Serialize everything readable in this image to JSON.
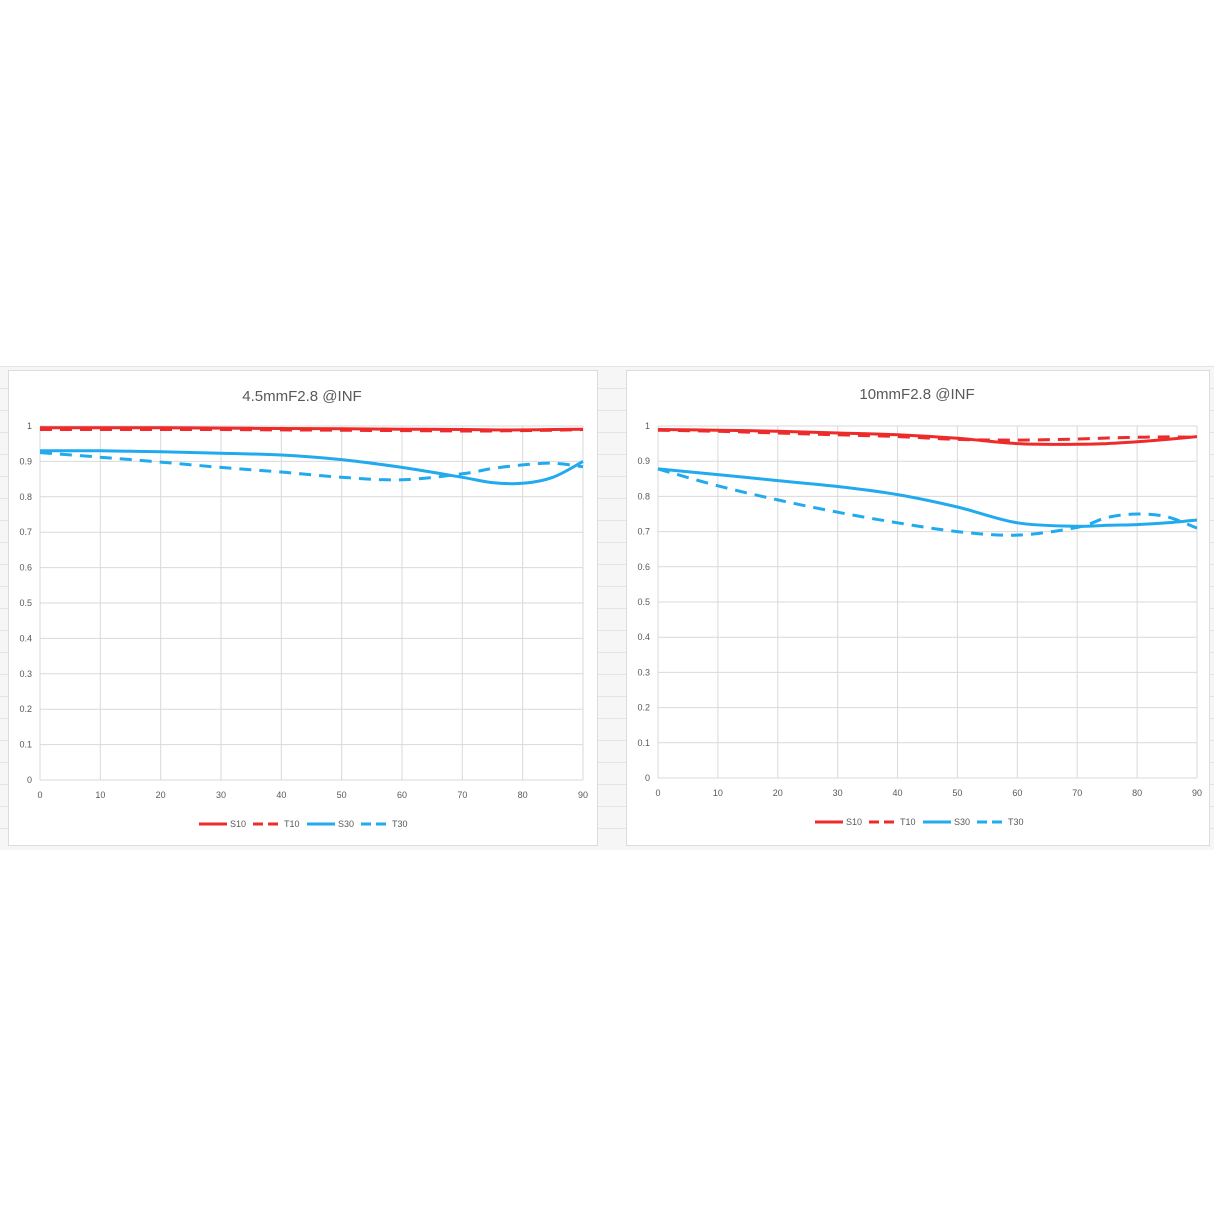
{
  "colors": {
    "s10": "#ee2b2b",
    "t10": "#ee2b2b",
    "s30": "#22aaee",
    "t30": "#22aaee",
    "grid": "#d9d9d9"
  },
  "chart_data": [
    {
      "type": "line",
      "title": "4.5mmF2.8 @INF",
      "xlabel": "",
      "ylabel": "",
      "xlim": [
        0,
        90
      ],
      "ylim": [
        0,
        1
      ],
      "xticks": [
        "0",
        "10",
        "20",
        "30",
        "40",
        "50",
        "60",
        "70",
        "80",
        "90"
      ],
      "yticks": [
        "0",
        "0.1",
        "0.2",
        "0.3",
        "0.4",
        "0.5",
        "0.6",
        "0.7",
        "0.8",
        "0.9",
        "1"
      ],
      "grid": true,
      "legend": "bottom",
      "x": [
        0,
        10,
        20,
        30,
        40,
        50,
        60,
        70,
        75,
        80,
        85,
        90
      ],
      "series": [
        {
          "name": "S10",
          "style": "solid",
          "color": "#ee2b2b",
          "values": [
            0.995,
            0.995,
            0.995,
            0.994,
            0.993,
            0.992,
            0.991,
            0.99,
            0.989,
            0.989,
            0.99,
            0.991
          ]
        },
        {
          "name": "T10",
          "style": "dashed",
          "color": "#ee2b2b",
          "values": [
            0.99,
            0.99,
            0.99,
            0.99,
            0.989,
            0.988,
            0.987,
            0.986,
            0.986,
            0.987,
            0.988,
            0.99
          ]
        },
        {
          "name": "S30",
          "style": "solid",
          "color": "#22aaee",
          "values": [
            0.93,
            0.93,
            0.927,
            0.923,
            0.918,
            0.905,
            0.883,
            0.855,
            0.84,
            0.838,
            0.855,
            0.9
          ]
        },
        {
          "name": "T30",
          "style": "dashed",
          "color": "#22aaee",
          "values": [
            0.925,
            0.912,
            0.898,
            0.883,
            0.87,
            0.855,
            0.848,
            0.865,
            0.88,
            0.89,
            0.895,
            0.885
          ]
        }
      ]
    },
    {
      "type": "line",
      "title": "10mmF2.8 @INF",
      "xlabel": "",
      "ylabel": "",
      "xlim": [
        0,
        90
      ],
      "ylim": [
        0,
        1
      ],
      "xticks": [
        "0",
        "10",
        "20",
        "30",
        "40",
        "50",
        "60",
        "70",
        "80",
        "90"
      ],
      "yticks": [
        "0",
        "0.1",
        "0.2",
        "0.3",
        "0.4",
        "0.5",
        "0.6",
        "0.7",
        "0.8",
        "0.9",
        "1"
      ],
      "grid": true,
      "legend": "bottom",
      "x": [
        0,
        10,
        20,
        30,
        40,
        50,
        60,
        70,
        75,
        80,
        85,
        90
      ],
      "series": [
        {
          "name": "S10",
          "style": "solid",
          "color": "#ee2b2b",
          "values": [
            0.99,
            0.988,
            0.985,
            0.98,
            0.975,
            0.965,
            0.95,
            0.948,
            0.95,
            0.955,
            0.962,
            0.97
          ]
        },
        {
          "name": "T10",
          "style": "dashed",
          "color": "#ee2b2b",
          "values": [
            0.988,
            0.985,
            0.98,
            0.975,
            0.97,
            0.962,
            0.96,
            0.963,
            0.966,
            0.968,
            0.969,
            0.968
          ]
        },
        {
          "name": "S30",
          "style": "solid",
          "color": "#22aaee",
          "values": [
            0.878,
            0.862,
            0.845,
            0.828,
            0.805,
            0.77,
            0.725,
            0.715,
            0.718,
            0.72,
            0.725,
            0.733
          ]
        },
        {
          "name": "T30",
          "style": "dashed",
          "color": "#22aaee",
          "values": [
            0.878,
            0.83,
            0.79,
            0.755,
            0.725,
            0.7,
            0.69,
            0.712,
            0.74,
            0.75,
            0.742,
            0.71
          ]
        }
      ]
    }
  ]
}
